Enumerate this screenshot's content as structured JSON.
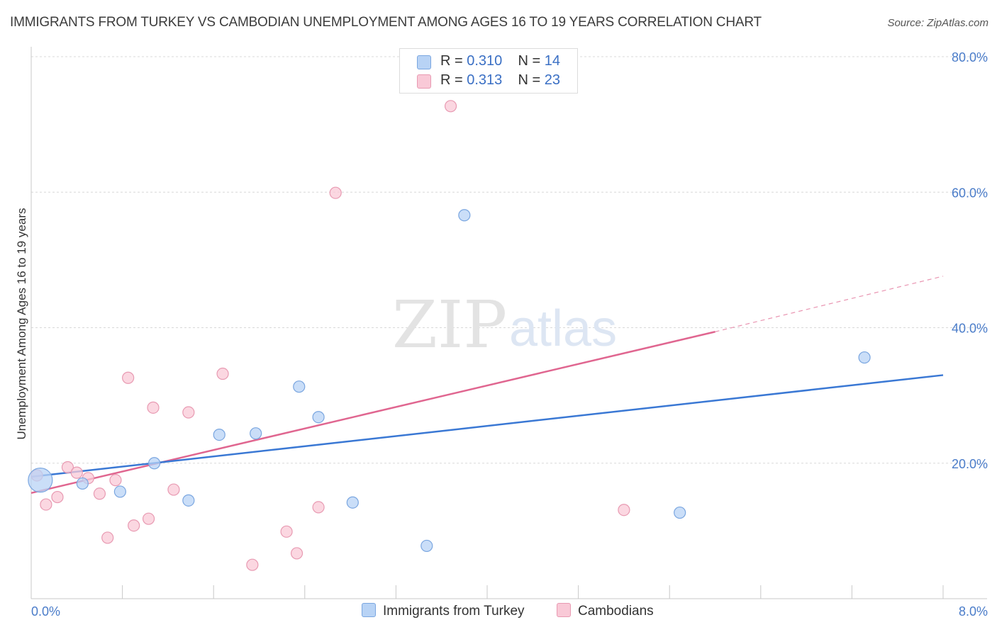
{
  "title": "IMMIGRANTS FROM TURKEY VS CAMBODIAN UNEMPLOYMENT AMONG AGES 16 TO 19 YEARS CORRELATION CHART",
  "source": "Source: ZipAtlas.com",
  "watermark": {
    "zip": "ZIP",
    "atlas": "atlas"
  },
  "legend": {
    "rows": [
      {
        "r_label": "R =",
        "r_value": "0.310",
        "n_label": "N =",
        "n_value": "14"
      },
      {
        "r_label": "R =",
        "r_value": "0.313",
        "n_label": "N =",
        "n_value": "23"
      }
    ]
  },
  "colors": {
    "turkey_fill": "#b8d3f5",
    "turkey_stroke": "#7aa6e0",
    "turkey_line": "#3a78d4",
    "cambodian_fill": "#f9c9d7",
    "cambodian_stroke": "#e89ab2",
    "cambodian_line": "#e06690",
    "grid": "#d8d8d8",
    "axis_text": "#4a7cc9"
  },
  "chart_data": {
    "type": "scatter",
    "title": "IMMIGRANTS FROM TURKEY VS CAMBODIAN UNEMPLOYMENT AMONG AGES 16 TO 19 YEARS CORRELATION CHART",
    "xlabel": "",
    "ylabel": "Unemployment Among Ages 16 to 19 years",
    "xlim": [
      0,
      8
    ],
    "ylim": [
      0,
      80
    ],
    "x_tick_labels": [
      "0.0%",
      "8.0%"
    ],
    "y_ticks": [
      20,
      40,
      60,
      80
    ],
    "y_tick_labels": [
      "20.0%",
      "40.0%",
      "60.0%",
      "80.0%"
    ],
    "series": [
      {
        "name": "Immigrants from Turkey",
        "points": [
          {
            "x": 0.08,
            "y": 17.5,
            "large": true
          },
          {
            "x": 0.45,
            "y": 17.0
          },
          {
            "x": 0.78,
            "y": 15.8
          },
          {
            "x": 1.08,
            "y": 20.0
          },
          {
            "x": 1.38,
            "y": 14.5
          },
          {
            "x": 1.65,
            "y": 24.2
          },
          {
            "x": 1.97,
            "y": 24.4
          },
          {
            "x": 2.35,
            "y": 31.3
          },
          {
            "x": 2.52,
            "y": 26.8
          },
          {
            "x": 2.82,
            "y": 14.2
          },
          {
            "x": 3.47,
            "y": 7.8
          },
          {
            "x": 3.8,
            "y": 56.6
          },
          {
            "x": 5.69,
            "y": 12.7
          },
          {
            "x": 7.31,
            "y": 35.6
          }
        ],
        "trend": {
          "x0": 0,
          "y0": 18.0,
          "x1": 8,
          "y1": 33.0
        }
      },
      {
        "name": "Cambodians",
        "points": [
          {
            "x": 0.05,
            "y": 18.2
          },
          {
            "x": 0.13,
            "y": 13.9
          },
          {
            "x": 0.23,
            "y": 15.0
          },
          {
            "x": 0.32,
            "y": 19.4
          },
          {
            "x": 0.4,
            "y": 18.6
          },
          {
            "x": 0.5,
            "y": 17.8
          },
          {
            "x": 0.6,
            "y": 15.5
          },
          {
            "x": 0.67,
            "y": 9.0
          },
          {
            "x": 0.74,
            "y": 17.5
          },
          {
            "x": 0.85,
            "y": 32.6
          },
          {
            "x": 0.9,
            "y": 10.8
          },
          {
            "x": 1.03,
            "y": 11.8
          },
          {
            "x": 1.07,
            "y": 28.2
          },
          {
            "x": 1.25,
            "y": 16.1
          },
          {
            "x": 1.38,
            "y": 27.5
          },
          {
            "x": 1.68,
            "y": 33.2
          },
          {
            "x": 1.94,
            "y": 5.0
          },
          {
            "x": 2.24,
            "y": 9.9
          },
          {
            "x": 2.33,
            "y": 6.7
          },
          {
            "x": 2.52,
            "y": 13.5
          },
          {
            "x": 2.67,
            "y": 59.9
          },
          {
            "x": 3.68,
            "y": 72.7
          },
          {
            "x": 5.2,
            "y": 13.1
          }
        ],
        "trend": {
          "x0": 0,
          "y0": 15.6,
          "x1": 6.0,
          "y1": 39.4,
          "dash_x1": 8,
          "dash_y1": 47.6
        }
      }
    ]
  },
  "bottom_legend": {
    "turkey_label": "Immigrants from Turkey",
    "cambodian_label": "Cambodians"
  }
}
